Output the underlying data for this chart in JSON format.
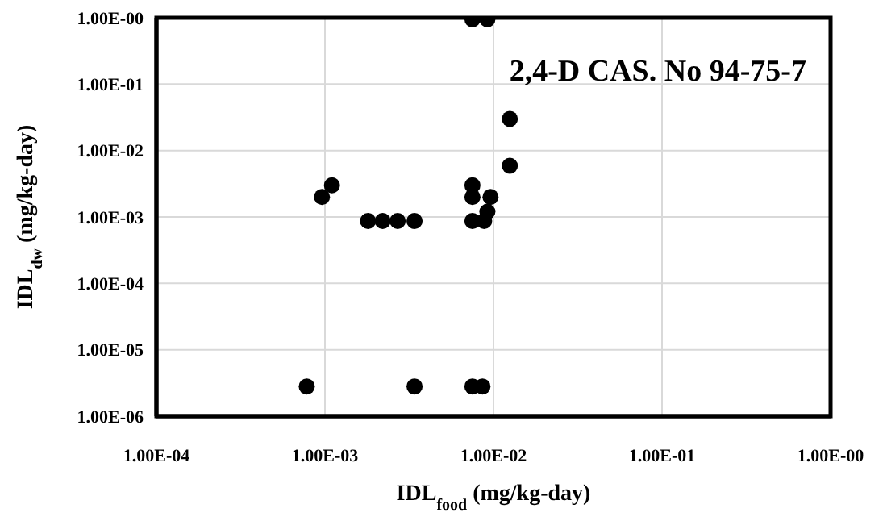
{
  "chart_data": {
    "type": "scatter",
    "xlabel": "IDL$_{food}$ (mg/kg-day)",
    "ylabel": "IDL$_{dw}$ (mg/kg-day)",
    "annotations": [
      "2,4-D CAS. No 94-75-7"
    ],
    "x": [
      0.00078,
      0.00096,
      0.0011,
      0.0018,
      0.0022,
      0.0027,
      0.0034,
      0.0034,
      0.0075,
      0.0075,
      0.0075,
      0.0088,
      0.0092,
      0.0096,
      0.0075,
      0.0086,
      0.0125,
      0.0125,
      0.0075,
      0.0092
    ],
    "values": [
      2.8e-06,
      0.002,
      0.003,
      0.00087,
      0.00087,
      0.00087,
      0.00087,
      2.8e-06,
      0.003,
      0.002,
      0.00087,
      0.00087,
      0.0012,
      0.002,
      2.8e-06,
      2.8e-06,
      0.03,
      0.0059,
      0.95,
      0.95
    ],
    "color": "#000000",
    "marker": "circle",
    "log": "xy",
    "grid": true,
    "xlim": [
      0.0001,
      1
    ],
    "ylim": [
      1e-06,
      1
    ],
    "xticks": [
      {
        "value": 0.0001,
        "label": "1.00E-04"
      },
      {
        "value": 0.001,
        "label": "1.00E-03"
      },
      {
        "value": 0.01,
        "label": "1.00E-02"
      },
      {
        "value": 0.1,
        "label": "1.00E-01"
      },
      {
        "value": 1,
        "label": "1.00E-00"
      }
    ],
    "yticks": [
      {
        "value": 1e-06,
        "label": "1.00E-06"
      },
      {
        "value": 1e-05,
        "label": "1.00E-05"
      },
      {
        "value": 0.0001,
        "label": "1.00E-04"
      },
      {
        "value": 0.001,
        "label": "1.00E-03"
      },
      {
        "value": 0.01,
        "label": "1.00E-02"
      },
      {
        "value": 0.1,
        "label": "1.00E-01"
      },
      {
        "value": 1,
        "label": "1.00E-00"
      }
    ]
  }
}
